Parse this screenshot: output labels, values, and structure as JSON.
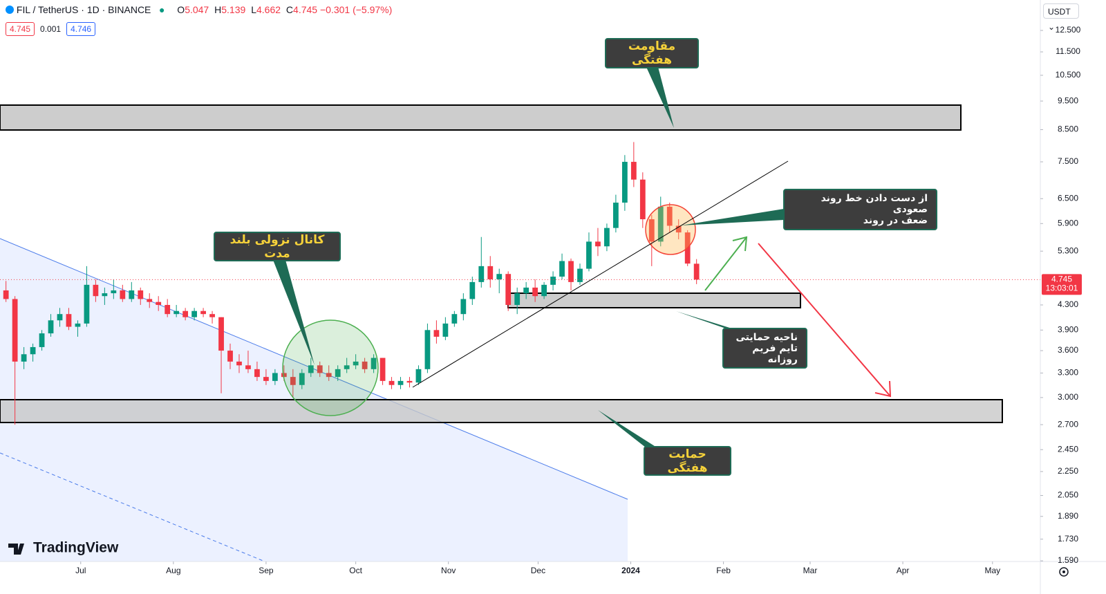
{
  "header": {
    "symbol": "FIL / TetherUS · 1D · BINANCE",
    "ohlc_labels": [
      "O",
      "H",
      "L",
      "C"
    ],
    "change_text": "−0.301 (−5.97%)",
    "bid": 4.745,
    "spread": 0.001,
    "ask": 4.746,
    "currency": "USDT",
    "watermark": "TradingView"
  },
  "chart_data": {
    "type": "candlestick",
    "x": [
      2,
      5,
      8,
      11,
      14,
      17,
      20,
      23,
      26,
      29,
      32,
      35,
      38,
      41,
      44,
      47,
      50,
      53,
      56,
      59,
      62,
      65,
      68,
      71,
      74,
      77,
      80,
      83,
      86,
      89,
      92,
      95,
      98,
      101,
      104,
      107,
      110,
      113,
      116,
      119,
      122,
      125,
      128,
      131,
      134,
      137,
      140,
      143,
      146,
      149,
      152,
      155,
      158,
      161,
      164,
      167,
      170,
      173,
      176,
      179,
      182,
      185,
      188,
      191,
      194,
      197,
      200,
      203,
      206,
      209,
      212,
      215,
      218,
      221,
      224,
      227,
      230,
      233
    ],
    "open": [
      4.55,
      4.4,
      3.45,
      3.55,
      3.65,
      3.85,
      4.05,
      4.15,
      3.95,
      4.0,
      4.65,
      4.45,
      4.5,
      4.55,
      4.4,
      4.55,
      4.4,
      4.35,
      4.3,
      4.15,
      4.2,
      4.1,
      4.2,
      4.15,
      4.1,
      3.6,
      3.45,
      3.4,
      3.35,
      3.25,
      3.2,
      3.3,
      3.25,
      3.15,
      3.3,
      3.4,
      3.3,
      3.25,
      3.35,
      3.4,
      3.45,
      3.35,
      3.5,
      3.2,
      3.15,
      3.2,
      3.18,
      3.35,
      3.9,
      3.8,
      4.0,
      4.15,
      4.4,
      4.7,
      5.0,
      4.75,
      4.85,
      4.3,
      4.5,
      4.6,
      4.45,
      4.65,
      4.8,
      5.1,
      4.7,
      4.95,
      5.5,
      5.4,
      5.8,
      6.4,
      7.5,
      7.0,
      6.0,
      5.5,
      6.3,
      5.85,
      5.7,
      5.047
    ],
    "high": [
      4.72,
      4.45,
      3.65,
      3.7,
      3.9,
      4.15,
      4.25,
      4.25,
      4.05,
      5.0,
      4.75,
      4.6,
      4.75,
      4.65,
      4.7,
      4.6,
      4.5,
      4.45,
      4.4,
      4.3,
      4.25,
      4.25,
      4.25,
      4.2,
      4.1,
      3.7,
      3.55,
      3.6,
      3.45,
      3.35,
      3.35,
      3.4,
      3.35,
      3.35,
      3.5,
      3.45,
      3.4,
      3.4,
      3.5,
      3.55,
      3.5,
      3.55,
      3.5,
      3.25,
      3.25,
      3.25,
      3.4,
      4.0,
      4.05,
      4.1,
      4.2,
      4.5,
      4.8,
      5.6,
      5.2,
      4.95,
      4.9,
      4.6,
      4.7,
      4.75,
      4.7,
      4.9,
      5.25,
      5.15,
      5.05,
      5.7,
      5.8,
      5.9,
      6.6,
      7.7,
      8.1,
      7.2,
      6.1,
      6.55,
      6.4,
      6.0,
      5.75,
      5.139
    ],
    "low": [
      4.35,
      2.7,
      3.35,
      3.45,
      3.6,
      3.8,
      3.95,
      3.9,
      3.8,
      3.95,
      4.35,
      4.3,
      4.4,
      4.35,
      4.35,
      4.3,
      4.25,
      4.2,
      4.1,
      4.1,
      4.05,
      4.05,
      4.1,
      4.0,
      3.05,
      3.35,
      3.3,
      3.3,
      3.2,
      3.15,
      3.15,
      3.2,
      3.0,
      3.1,
      3.25,
      3.25,
      3.2,
      3.2,
      3.3,
      3.35,
      3.3,
      3.3,
      3.15,
      3.1,
      3.1,
      3.12,
      3.15,
      3.3,
      3.7,
      3.75,
      3.95,
      4.05,
      4.3,
      4.6,
      4.6,
      4.5,
      4.2,
      4.15,
      4.4,
      4.35,
      4.4,
      4.55,
      4.75,
      4.55,
      4.65,
      4.9,
      5.2,
      5.3,
      5.7,
      6.2,
      6.8,
      5.8,
      5.0,
      5.4,
      5.7,
      5.55,
      5.0,
      4.662
    ],
    "close": [
      4.4,
      3.45,
      3.55,
      3.65,
      3.85,
      4.05,
      4.15,
      3.95,
      4.0,
      4.65,
      4.45,
      4.5,
      4.55,
      4.4,
      4.55,
      4.4,
      4.35,
      4.3,
      4.15,
      4.2,
      4.1,
      4.2,
      4.15,
      4.1,
      3.6,
      3.45,
      3.4,
      3.35,
      3.25,
      3.2,
      3.3,
      3.25,
      3.15,
      3.3,
      3.4,
      3.3,
      3.25,
      3.35,
      3.4,
      3.45,
      3.35,
      3.5,
      3.2,
      3.15,
      3.2,
      3.18,
      3.35,
      3.9,
      3.8,
      4.0,
      4.15,
      4.4,
      4.7,
      5.0,
      4.75,
      4.85,
      4.3,
      4.5,
      4.6,
      4.45,
      4.65,
      4.8,
      5.1,
      4.7,
      4.95,
      5.5,
      5.4,
      5.8,
      6.4,
      7.5,
      7.0,
      6.0,
      5.5,
      6.3,
      5.85,
      5.7,
      5.05,
      4.745
    ],
    "up_color": "#089981",
    "down_color": "#f23645",
    "xlim": [
      0,
      348
    ],
    "xticks": [
      {
        "value": 27,
        "label": "Jul"
      },
      {
        "value": 58,
        "label": "Aug"
      },
      {
        "value": 89,
        "label": "Sep"
      },
      {
        "value": 119,
        "label": "Oct"
      },
      {
        "value": 150,
        "label": "Nov"
      },
      {
        "value": 180,
        "label": "Dec"
      },
      {
        "value": 211,
        "label": "2024"
      },
      {
        "value": 242,
        "label": "Feb"
      },
      {
        "value": 271,
        "label": "Mar"
      },
      {
        "value": 302,
        "label": "Apr"
      },
      {
        "value": 332,
        "label": "May"
      }
    ],
    "ylim": [
      1.586,
      14.07
    ],
    "log_scale": true,
    "grid": false,
    "yticks": [
      {
        "value": 12.5,
        "label": "12.500"
      },
      {
        "value": 11.5,
        "label": "11.500"
      },
      {
        "value": 10.5,
        "label": "10.500"
      },
      {
        "value": 9.5,
        "label": "9.500"
      },
      {
        "value": 8.5,
        "label": "8.500"
      },
      {
        "value": 7.5,
        "label": "7.500"
      },
      {
        "value": 6.5,
        "label": "6.500"
      },
      {
        "value": 5.9,
        "label": "5.900"
      },
      {
        "value": 5.3,
        "label": "5.300"
      },
      {
        "value": 4.3,
        "label": "4.300"
      },
      {
        "value": 3.9,
        "label": "3.900"
      },
      {
        "value": 3.6,
        "label": "3.600"
      },
      {
        "value": 3.3,
        "label": "3.300"
      },
      {
        "value": 3,
        "label": "3.000"
      },
      {
        "value": 2.7,
        "label": "2.700"
      },
      {
        "value": 2.45,
        "label": "2.450"
      },
      {
        "value": 2.25,
        "label": "2.250"
      },
      {
        "value": 2.05,
        "label": "2.050"
      },
      {
        "value": 1.89,
        "label": "1.890"
      },
      {
        "value": 1.73,
        "label": "1.730"
      },
      {
        "value": 1.59,
        "label": "1.590"
      }
    ],
    "countdown": "13:03:01",
    "annotations": [
      {
        "lines": [
          "مقاومت هفتگی"
        ]
      },
      {
        "lines": [
          "کانال نزولی بلند مدت"
        ]
      },
      {
        "lines": [
          "از دست دادن خط روند صعودی",
          "ضعف در روند"
        ]
      },
      {
        "lines": [
          "ناحیه حمایتی",
          "تایم فریم روزانه"
        ]
      },
      {
        "lines": [
          "حمایت هفتگی"
        ]
      }
    ]
  }
}
